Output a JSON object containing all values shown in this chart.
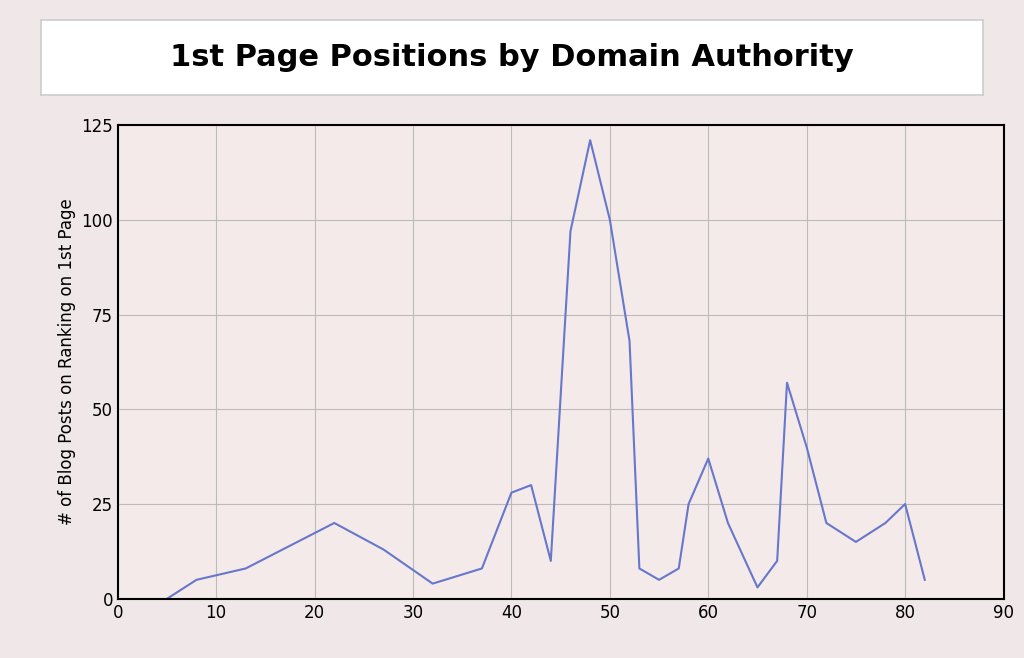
{
  "title": "1st Page Positions by Domain Authority",
  "xlabel": "",
  "ylabel": "# of Blog Posts on Ranking on 1st Page",
  "x": [
    5,
    8,
    13,
    22,
    27,
    32,
    37,
    40,
    42,
    44,
    46,
    48,
    50,
    52,
    53,
    55,
    57,
    58,
    60,
    62,
    65,
    67,
    68,
    70,
    72,
    75,
    78,
    80,
    82
  ],
  "y": [
    0,
    5,
    8,
    20,
    13,
    4,
    8,
    28,
    30,
    10,
    97,
    121,
    100,
    68,
    8,
    5,
    8,
    25,
    37,
    20,
    3,
    10,
    57,
    40,
    20,
    15,
    20,
    25,
    5
  ],
  "xlim": [
    0,
    90
  ],
  "ylim": [
    0,
    125
  ],
  "xticks": [
    0,
    10,
    20,
    30,
    40,
    50,
    60,
    70,
    80,
    90
  ],
  "yticks": [
    0,
    25,
    50,
    75,
    100,
    125
  ],
  "line_color": "#6677cc",
  "outer_bg_color": "#f0e8e8",
  "title_box_color": "#ffffff",
  "plot_bg_color": "#f5eaea",
  "grid_color": "#bbbbbb",
  "title_fontsize": 22,
  "label_fontsize": 12,
  "tick_fontsize": 12,
  "title_border_color": "#cccccc"
}
